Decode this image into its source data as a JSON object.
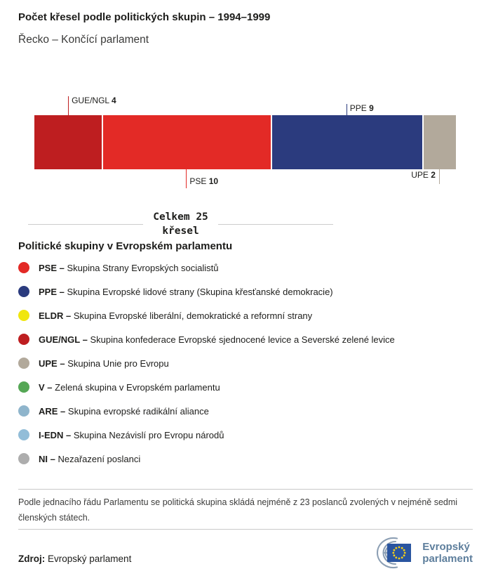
{
  "header": {
    "title": "Počet křesel podle politických skupin – 1994–1999",
    "subtitle": "Řecko – Končící parlament"
  },
  "chart_data": {
    "type": "bar",
    "orientation": "horizontal-stacked",
    "total_seats": 25,
    "total_label_line1": "Celkem 25",
    "total_label_line2": "křesel",
    "segments": [
      {
        "group": "GUE/NGL",
        "seats": 4,
        "color": "#BE1E20",
        "label_side": "above",
        "text_pos": "right",
        "tick_len": 27
      },
      {
        "group": "PSE",
        "seats": 10,
        "color": "#E32A26",
        "label_side": "below",
        "text_pos": "right",
        "tick_len": 27
      },
      {
        "group": "PPE",
        "seats": 9,
        "color": "#2B3B7E",
        "label_side": "above",
        "text_pos": "right",
        "tick_len": 16
      },
      {
        "group": "UPE",
        "seats": 2,
        "color": "#B2A99B",
        "label_side": "below",
        "text_pos": "left",
        "tick_len": 21
      }
    ]
  },
  "legend": {
    "heading": "Politické skupiny v Evropském parlamentu",
    "items": [
      {
        "abbr": "PSE –",
        "name": "Skupina Strany Evropských socialistů",
        "color": "#E32A26"
      },
      {
        "abbr": "PPE –",
        "name": "Skupina Evropské lidové strany (Skupina křesťanské demokracie)",
        "color": "#2B3B7E"
      },
      {
        "abbr": "ELDR –",
        "name": "Skupina Evropské liberální, demokratické a reformní strany",
        "color": "#F0E60E"
      },
      {
        "abbr": "GUE/NGL –",
        "name": "Skupina konfederace Evropské sjednocené levice a Severské zelené levice",
        "color": "#BE1E20"
      },
      {
        "abbr": "UPE –",
        "name": "Skupina Unie pro Evropu",
        "color": "#B2A99B"
      },
      {
        "abbr": "V –",
        "name": "Zelená skupina v Evropském parlamentu",
        "color": "#55A755"
      },
      {
        "abbr": "ARE –",
        "name": "Skupina evropské radikální aliance",
        "color": "#8FB5CC"
      },
      {
        "abbr": "I-EDN –",
        "name": "Skupina Nezávislí pro Evropu národů",
        "color": "#92BDD8"
      },
      {
        "abbr": "NI –",
        "name": "Nezařazení poslanci",
        "color": "#ADADAD"
      }
    ]
  },
  "footer": {
    "note": "Podle jednacího řádu Parlamentu se politická skupina skládá nejméně z 23 poslanců zvolených v nejméně sedmi členských státech.",
    "source_label": "Zdroj:",
    "source_value": "Evropský parlament",
    "logo_line1": "Evropský",
    "logo_line2": "parlament"
  }
}
